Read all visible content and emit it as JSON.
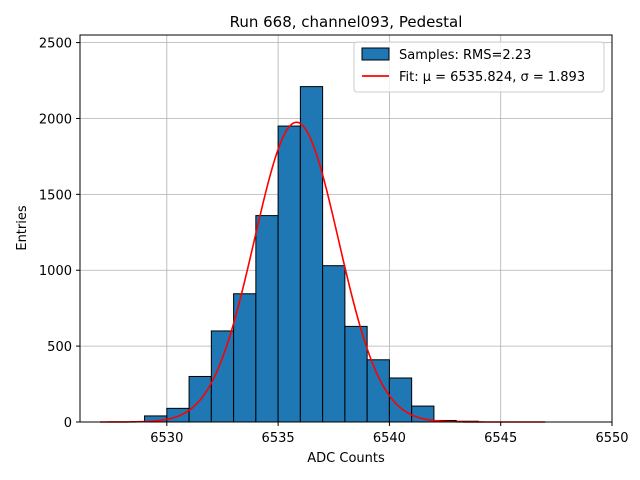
{
  "chart_data": {
    "type": "bar",
    "title": "Run 668, channel093, Pedestal",
    "xlabel": "ADC Counts",
    "ylabel": "Entries",
    "xlim": [
      6526.1,
      6550.0
    ],
    "ylim": [
      0,
      2550
    ],
    "xticks": [
      6530,
      6535,
      6540,
      6545,
      6550
    ],
    "yticks": [
      0,
      500,
      1000,
      1500,
      2000,
      2500
    ],
    "grid": true,
    "legend_position": "top-right",
    "colors": {
      "bars": "#1f77b4",
      "bar_edge": "#000000",
      "fit": "#ff0000",
      "grid": "#b0b0b0"
    },
    "histogram": {
      "name": "Samples: RMS=2.23",
      "bin_edges": [
        6529,
        6530,
        6531,
        6532,
        6533,
        6534,
        6535,
        6536,
        6537,
        6538,
        6539,
        6540,
        6541,
        6542,
        6543,
        6544
      ],
      "counts": [
        40,
        90,
        300,
        600,
        845,
        1360,
        1950,
        2210,
        1030,
        630,
        410,
        290,
        105,
        10,
        5
      ]
    },
    "fit": {
      "name": "Fit: μ = 6535.824, σ = 1.893",
      "mu": 6535.824,
      "sigma": 1.893,
      "amplitude": 1975,
      "x_range": [
        6527,
        6547
      ]
    }
  }
}
